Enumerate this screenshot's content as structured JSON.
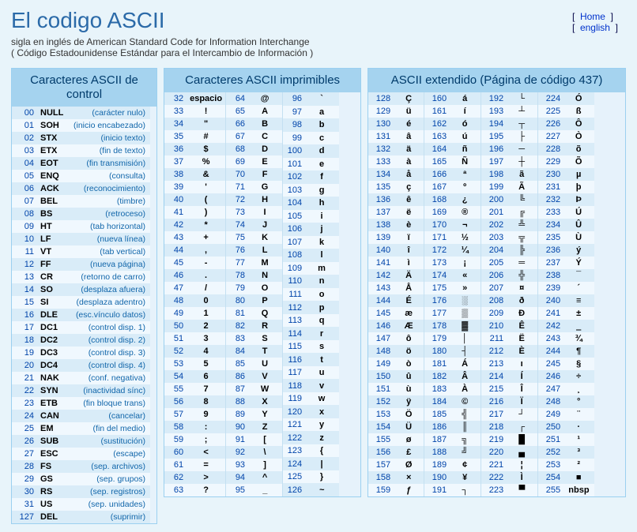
{
  "title": "El codigo ASCII",
  "subtitle1": "sigla en inglés de American Standard Code for Information Interchange",
  "subtitle2": "( Código Estadounidense Estándar para el Intercambio de Información )",
  "nav": {
    "home": "Home",
    "english": "english"
  },
  "colors": {
    "page_bg": "#e8f4fa",
    "panel_border": "#9bd0f0",
    "caption_bg": "#a5d3ef",
    "caption_fg": "#003b6b",
    "row_even": "#d9ecf8",
    "row_odd": "#f0f8fe",
    "code_color": "#0044aa",
    "desc_color": "#1166aa",
    "title_color": "#2b6aa8"
  },
  "panels": {
    "control": {
      "caption": "Caracteres ASCII de control",
      "rows": [
        [
          "00",
          "NULL",
          "(carácter nulo)"
        ],
        [
          "01",
          "SOH",
          "(inicio encabezado)"
        ],
        [
          "02",
          "STX",
          "(inicio texto)"
        ],
        [
          "03",
          "ETX",
          "(fin de texto)"
        ],
        [
          "04",
          "EOT",
          "(fin transmisión)"
        ],
        [
          "05",
          "ENQ",
          "(consulta)"
        ],
        [
          "06",
          "ACK",
          "(reconocimiento)"
        ],
        [
          "07",
          "BEL",
          "(timbre)"
        ],
        [
          "08",
          "BS",
          "(retroceso)"
        ],
        [
          "09",
          "HT",
          "(tab horizontal)"
        ],
        [
          "10",
          "LF",
          "(nueva línea)"
        ],
        [
          "11",
          "VT",
          "(tab vertical)"
        ],
        [
          "12",
          "FF",
          "(nueva página)"
        ],
        [
          "13",
          "CR",
          "(retorno de carro)"
        ],
        [
          "14",
          "SO",
          "(desplaza afuera)"
        ],
        [
          "15",
          "SI",
          "(desplaza adentro)"
        ],
        [
          "16",
          "DLE",
          "(esc.vínculo datos)"
        ],
        [
          "17",
          "DC1",
          "(control disp. 1)"
        ],
        [
          "18",
          "DC2",
          "(control disp. 2)"
        ],
        [
          "19",
          "DC3",
          "(control disp. 3)"
        ],
        [
          "20",
          "DC4",
          "(control disp. 4)"
        ],
        [
          "21",
          "NAK",
          "(conf. negativa)"
        ],
        [
          "22",
          "SYN",
          "(inactividad sínc)"
        ],
        [
          "23",
          "ETB",
          "(fin bloque trans)"
        ],
        [
          "24",
          "CAN",
          "(cancelar)"
        ],
        [
          "25",
          "EM",
          "(fin del medio)"
        ],
        [
          "26",
          "SUB",
          "(sustitución)"
        ],
        [
          "27",
          "ESC",
          "(escape)"
        ],
        [
          "28",
          "FS",
          "(sep. archivos)"
        ],
        [
          "29",
          "GS",
          "(sep. grupos)"
        ],
        [
          "30",
          "RS",
          "(sep. registros)"
        ],
        [
          "31",
          "US",
          "(sep. unidades)"
        ],
        [
          "127",
          "DEL",
          "(suprimir)"
        ]
      ]
    },
    "printable": {
      "caption": "Caracteres ASCII imprimibles",
      "cols": [
        [
          [
            "32",
            "espacio"
          ],
          [
            "33",
            "!"
          ],
          [
            "34",
            "\""
          ],
          [
            "35",
            "#"
          ],
          [
            "36",
            "$"
          ],
          [
            "37",
            "%"
          ],
          [
            "38",
            "&"
          ],
          [
            "39",
            "'"
          ],
          [
            "40",
            "("
          ],
          [
            "41",
            ")"
          ],
          [
            "42",
            "*"
          ],
          [
            "43",
            "+"
          ],
          [
            "44",
            ","
          ],
          [
            "45",
            "-"
          ],
          [
            "46",
            "."
          ],
          [
            "47",
            "/"
          ],
          [
            "48",
            "0"
          ],
          [
            "49",
            "1"
          ],
          [
            "50",
            "2"
          ],
          [
            "51",
            "3"
          ],
          [
            "52",
            "4"
          ],
          [
            "53",
            "5"
          ],
          [
            "54",
            "6"
          ],
          [
            "55",
            "7"
          ],
          [
            "56",
            "8"
          ],
          [
            "57",
            "9"
          ],
          [
            "58",
            ":"
          ],
          [
            "59",
            ";"
          ],
          [
            "60",
            "<"
          ],
          [
            "61",
            "="
          ],
          [
            "62",
            ">"
          ],
          [
            "63",
            "?"
          ]
        ],
        [
          [
            "64",
            "@"
          ],
          [
            "65",
            "A"
          ],
          [
            "66",
            "B"
          ],
          [
            "67",
            "C"
          ],
          [
            "68",
            "D"
          ],
          [
            "69",
            "E"
          ],
          [
            "70",
            "F"
          ],
          [
            "71",
            "G"
          ],
          [
            "72",
            "H"
          ],
          [
            "73",
            "I"
          ],
          [
            "74",
            "J"
          ],
          [
            "75",
            "K"
          ],
          [
            "76",
            "L"
          ],
          [
            "77",
            "M"
          ],
          [
            "78",
            "N"
          ],
          [
            "79",
            "O"
          ],
          [
            "80",
            "P"
          ],
          [
            "81",
            "Q"
          ],
          [
            "82",
            "R"
          ],
          [
            "83",
            "S"
          ],
          [
            "84",
            "T"
          ],
          [
            "85",
            "U"
          ],
          [
            "86",
            "V"
          ],
          [
            "87",
            "W"
          ],
          [
            "88",
            "X"
          ],
          [
            "89",
            "Y"
          ],
          [
            "90",
            "Z"
          ],
          [
            "91",
            "["
          ],
          [
            "92",
            "\\"
          ],
          [
            "93",
            "]"
          ],
          [
            "94",
            "^"
          ],
          [
            "95",
            "_"
          ]
        ],
        [
          [
            "96",
            "`"
          ],
          [
            "97",
            "a"
          ],
          [
            "98",
            "b"
          ],
          [
            "99",
            "c"
          ],
          [
            "100",
            "d"
          ],
          [
            "101",
            "e"
          ],
          [
            "102",
            "f"
          ],
          [
            "103",
            "g"
          ],
          [
            "104",
            "h"
          ],
          [
            "105",
            "i"
          ],
          [
            "106",
            "j"
          ],
          [
            "107",
            "k"
          ],
          [
            "108",
            "l"
          ],
          [
            "109",
            "m"
          ],
          [
            "110",
            "n"
          ],
          [
            "111",
            "o"
          ],
          [
            "112",
            "p"
          ],
          [
            "113",
            "q"
          ],
          [
            "114",
            "r"
          ],
          [
            "115",
            "s"
          ],
          [
            "116",
            "t"
          ],
          [
            "117",
            "u"
          ],
          [
            "118",
            "v"
          ],
          [
            "119",
            "w"
          ],
          [
            "120",
            "x"
          ],
          [
            "121",
            "y"
          ],
          [
            "122",
            "z"
          ],
          [
            "123",
            "{"
          ],
          [
            "124",
            "|"
          ],
          [
            "125",
            "}"
          ],
          [
            "126",
            "~"
          ]
        ]
      ]
    },
    "extended": {
      "caption": "ASCII extendido (Página de código 437)",
      "cols": [
        [
          [
            "128",
            "Ç"
          ],
          [
            "129",
            "ü"
          ],
          [
            "130",
            "é"
          ],
          [
            "131",
            "â"
          ],
          [
            "132",
            "ä"
          ],
          [
            "133",
            "à"
          ],
          [
            "134",
            "å"
          ],
          [
            "135",
            "ç"
          ],
          [
            "136",
            "ê"
          ],
          [
            "137",
            "ë"
          ],
          [
            "138",
            "è"
          ],
          [
            "139",
            "ï"
          ],
          [
            "140",
            "î"
          ],
          [
            "141",
            "ì"
          ],
          [
            "142",
            "Ä"
          ],
          [
            "143",
            "Å"
          ],
          [
            "144",
            "É"
          ],
          [
            "145",
            "æ"
          ],
          [
            "146",
            "Æ"
          ],
          [
            "147",
            "ô"
          ],
          [
            "148",
            "ö"
          ],
          [
            "149",
            "ò"
          ],
          [
            "150",
            "û"
          ],
          [
            "151",
            "ù"
          ],
          [
            "152",
            "ÿ"
          ],
          [
            "153",
            "Ö"
          ],
          [
            "154",
            "Ü"
          ],
          [
            "155",
            "ø"
          ],
          [
            "156",
            "£"
          ],
          [
            "157",
            "Ø"
          ],
          [
            "158",
            "×"
          ],
          [
            "159",
            "ƒ"
          ]
        ],
        [
          [
            "160",
            "á"
          ],
          [
            "161",
            "í"
          ],
          [
            "162",
            "ó"
          ],
          [
            "163",
            "ú"
          ],
          [
            "164",
            "ñ"
          ],
          [
            "165",
            "Ñ"
          ],
          [
            "166",
            "ª"
          ],
          [
            "167",
            "º"
          ],
          [
            "168",
            "¿"
          ],
          [
            "169",
            "®"
          ],
          [
            "170",
            "¬"
          ],
          [
            "171",
            "½"
          ],
          [
            "172",
            "¼"
          ],
          [
            "173",
            "¡"
          ],
          [
            "174",
            "«"
          ],
          [
            "175",
            "»"
          ],
          [
            "176",
            "░"
          ],
          [
            "177",
            "▒"
          ],
          [
            "178",
            "▓"
          ],
          [
            "179",
            "│"
          ],
          [
            "180",
            "┤"
          ],
          [
            "181",
            "Á"
          ],
          [
            "182",
            "Â"
          ],
          [
            "183",
            "À"
          ],
          [
            "184",
            "©"
          ],
          [
            "185",
            "╣"
          ],
          [
            "186",
            "║"
          ],
          [
            "187",
            "╗"
          ],
          [
            "188",
            "╝"
          ],
          [
            "189",
            "¢"
          ],
          [
            "190",
            "¥"
          ],
          [
            "191",
            "┐"
          ]
        ],
        [
          [
            "192",
            "└"
          ],
          [
            "193",
            "┴"
          ],
          [
            "194",
            "┬"
          ],
          [
            "195",
            "├"
          ],
          [
            "196",
            "─"
          ],
          [
            "197",
            "┼"
          ],
          [
            "198",
            "ã"
          ],
          [
            "199",
            "Ã"
          ],
          [
            "200",
            "╚"
          ],
          [
            "201",
            "╔"
          ],
          [
            "202",
            "╩"
          ],
          [
            "203",
            "╦"
          ],
          [
            "204",
            "╠"
          ],
          [
            "205",
            "═"
          ],
          [
            "206",
            "╬"
          ],
          [
            "207",
            "¤"
          ],
          [
            "208",
            "ð"
          ],
          [
            "209",
            "Ð"
          ],
          [
            "210",
            "Ê"
          ],
          [
            "211",
            "Ë"
          ],
          [
            "212",
            "È"
          ],
          [
            "213",
            "ı"
          ],
          [
            "214",
            "Í"
          ],
          [
            "215",
            "Î"
          ],
          [
            "216",
            "Ï"
          ],
          [
            "217",
            "┘"
          ],
          [
            "218",
            "┌"
          ],
          [
            "219",
            "█"
          ],
          [
            "220",
            "▄"
          ],
          [
            "221",
            "¦"
          ],
          [
            "222",
            "Ì"
          ],
          [
            "223",
            "▀"
          ]
        ],
        [
          [
            "224",
            "Ó"
          ],
          [
            "225",
            "ß"
          ],
          [
            "226",
            "Ô"
          ],
          [
            "227",
            "Ò"
          ],
          [
            "228",
            "õ"
          ],
          [
            "229",
            "Õ"
          ],
          [
            "230",
            "µ"
          ],
          [
            "231",
            "þ"
          ],
          [
            "232",
            "Þ"
          ],
          [
            "233",
            "Ú"
          ],
          [
            "234",
            "Û"
          ],
          [
            "235",
            "Ù"
          ],
          [
            "236",
            "ý"
          ],
          [
            "237",
            "Ý"
          ],
          [
            "238",
            "¯"
          ],
          [
            "239",
            "´"
          ],
          [
            "240",
            "­­≡"
          ],
          [
            "241",
            "±"
          ],
          [
            "242",
            "‗"
          ],
          [
            "243",
            "¾"
          ],
          [
            "244",
            "¶"
          ],
          [
            "245",
            "§"
          ],
          [
            "246",
            "÷"
          ],
          [
            "247",
            "¸"
          ],
          [
            "248",
            "°"
          ],
          [
            "249",
            "¨"
          ],
          [
            "250",
            "·"
          ],
          [
            "251",
            "¹"
          ],
          [
            "252",
            "³"
          ],
          [
            "253",
            "²"
          ],
          [
            "254",
            "■"
          ],
          [
            "255",
            "nbsp"
          ]
        ]
      ]
    }
  }
}
